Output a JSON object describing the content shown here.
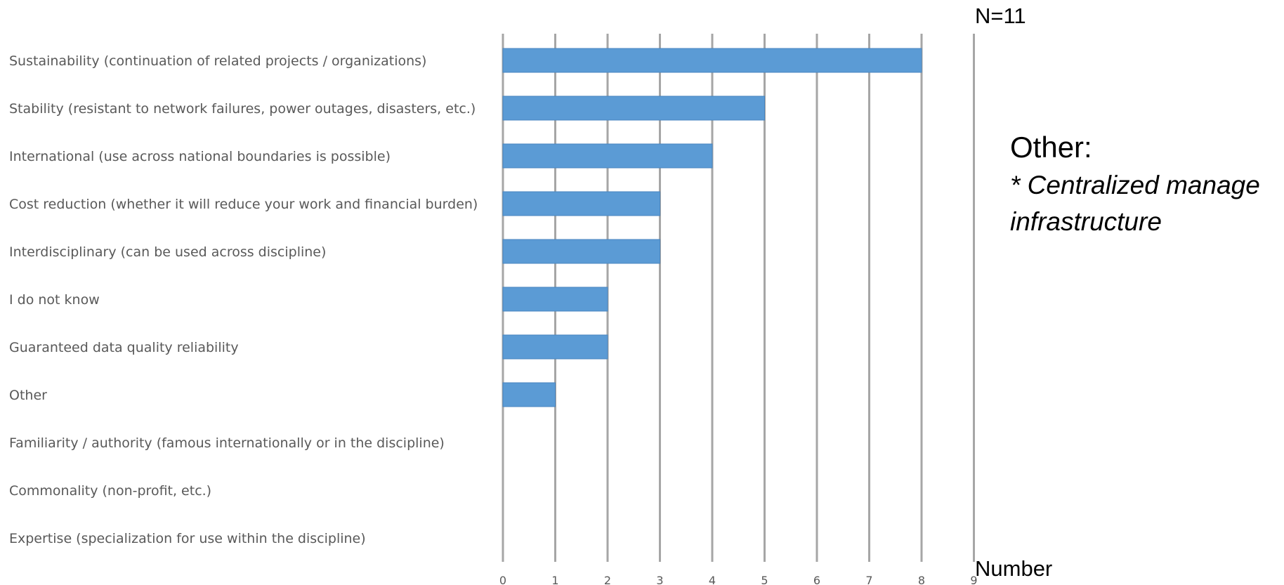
{
  "chart_data": {
    "type": "bar",
    "orientation": "horizontal",
    "categories": [
      "Sustainability (continuation of related projects / organizations)",
      "Stability (resistant to network failures, power outages, disasters, etc.)",
      "International (use across national boundaries is possible)",
      "Cost reduction (whether it will reduce your work and financial burden)",
      "Interdisciplinary (can be used across discipline)",
      "I do not know",
      "Guaranteed data quality reliability",
      "Other",
      "Familiarity / authority (famous internationally or in the discipline)",
      "Commonality (non-profit, etc.)",
      "Expertise (specialization for use within the discipline)"
    ],
    "values": [
      8,
      5,
      4,
      3,
      3,
      2,
      2,
      1,
      0,
      0,
      0
    ],
    "xlabel": "Number",
    "xlim": [
      0,
      9
    ],
    "xticks": [
      "0",
      "1",
      "2",
      "3",
      "4",
      "5",
      "6",
      "7",
      "8",
      "9"
    ],
    "grid": "vertical",
    "bar_color": "#5b9bd5",
    "annotation": "N=11"
  },
  "note": {
    "heading": "Other:",
    "lines": [
      "* Centralized manage",
      "infrastructure"
    ]
  }
}
